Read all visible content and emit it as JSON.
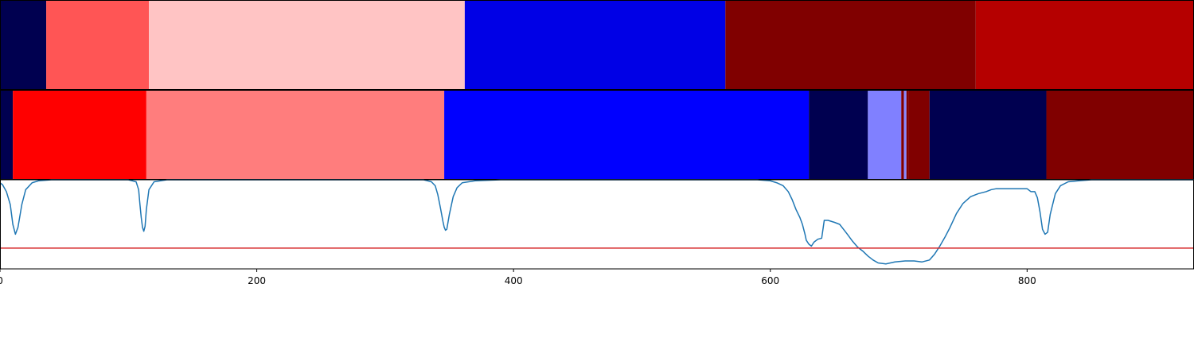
{
  "chart_data": [
    {
      "type": "heatmap",
      "x": [
        0,
        36,
        116,
        362,
        565,
        760,
        930
      ],
      "colors": [
        "#000050",
        "#ff5555",
        "#ffc4c4",
        "#0000e6",
        "#800000",
        "#b50000"
      ],
      "xlim": [
        0,
        930
      ]
    },
    {
      "type": "heatmap",
      "x": [
        0,
        10,
        114,
        346,
        630,
        676,
        702,
        704,
        706,
        708,
        724,
        815,
        930
      ],
      "colors": [
        "#000050",
        "#ff0000",
        "#ff7d7d",
        "#0000ff",
        "#000050",
        "#8080ff",
        "#800000",
        "#8a8aff",
        "#800000",
        "#800000",
        "#000050",
        "#800000"
      ],
      "xlim": [
        0,
        930
      ]
    },
    {
      "type": "line",
      "series": [
        {
          "color": "#1f77b4",
          "points": [
            [
              0,
              0.97
            ],
            [
              2,
              0.95
            ],
            [
              5,
              0.88
            ],
            [
              8,
              0.75
            ],
            [
              10,
              0.55
            ],
            [
              12,
              0.45
            ],
            [
              14,
              0.52
            ],
            [
              17,
              0.75
            ],
            [
              20,
              0.9
            ],
            [
              25,
              0.97
            ],
            [
              30,
              0.99
            ],
            [
              40,
              1.0
            ],
            [
              100,
              1.0
            ],
            [
              106,
              0.98
            ],
            [
              108,
              0.9
            ],
            [
              109,
              0.75
            ],
            [
              110,
              0.62
            ],
            [
              111,
              0.52
            ],
            [
              112,
              0.48
            ],
            [
              113,
              0.53
            ],
            [
              114,
              0.7
            ],
            [
              116,
              0.9
            ],
            [
              120,
              0.98
            ],
            [
              130,
              1.0
            ],
            [
              330,
              1.0
            ],
            [
              336,
              0.98
            ],
            [
              339,
              0.94
            ],
            [
              341,
              0.85
            ],
            [
              343,
              0.72
            ],
            [
              345,
              0.58
            ],
            [
              346,
              0.52
            ],
            [
              347,
              0.49
            ],
            [
              348,
              0.5
            ],
            [
              350,
              0.65
            ],
            [
              353,
              0.83
            ],
            [
              356,
              0.92
            ],
            [
              360,
              0.97
            ],
            [
              370,
              0.99
            ],
            [
              390,
              1.0
            ],
            [
              590,
              1.0
            ],
            [
              600,
              0.99
            ],
            [
              605,
              0.97
            ],
            [
              610,
              0.94
            ],
            [
              614,
              0.88
            ],
            [
              617,
              0.8
            ],
            [
              620,
              0.7
            ],
            [
              623,
              0.62
            ],
            [
              625,
              0.55
            ],
            [
              627,
              0.45
            ],
            [
              628,
              0.39
            ],
            [
              630,
              0.35
            ],
            [
              632,
              0.33
            ],
            [
              634,
              0.37
            ],
            [
              637,
              0.4
            ],
            [
              640,
              0.41
            ],
            [
              641,
              0.5
            ],
            [
              642,
              0.59
            ],
            [
              645,
              0.59
            ],
            [
              650,
              0.57
            ],
            [
              654,
              0.55
            ],
            [
              657,
              0.5
            ],
            [
              660,
              0.45
            ],
            [
              664,
              0.38
            ],
            [
              668,
              0.32
            ],
            [
              672,
              0.28
            ],
            [
              676,
              0.23
            ],
            [
              680,
              0.19
            ],
            [
              684,
              0.16
            ],
            [
              690,
              0.15
            ],
            [
              697,
              0.17
            ],
            [
              705,
              0.18
            ],
            [
              712,
              0.18
            ],
            [
              718,
              0.17
            ],
            [
              724,
              0.19
            ],
            [
              728,
              0.25
            ],
            [
              732,
              0.33
            ],
            [
              736,
              0.42
            ],
            [
              740,
              0.52
            ],
            [
              745,
              0.66
            ],
            [
              750,
              0.76
            ],
            [
              756,
              0.83
            ],
            [
              762,
              0.86
            ],
            [
              768,
              0.88
            ],
            [
              772,
              0.9
            ],
            [
              776,
              0.91
            ],
            [
              780,
              0.91
            ],
            [
              800,
              0.91
            ],
            [
              803,
              0.88
            ],
            [
              806,
              0.88
            ],
            [
              808,
              0.82
            ],
            [
              810,
              0.68
            ],
            [
              812,
              0.5
            ],
            [
              814,
              0.45
            ],
            [
              816,
              0.47
            ],
            [
              818,
              0.65
            ],
            [
              822,
              0.86
            ],
            [
              826,
              0.94
            ],
            [
              832,
              0.98
            ],
            [
              840,
              0.99
            ],
            [
              850,
              1.0
            ],
            [
              930,
              1.0
            ]
          ]
        },
        {
          "color": "#d62728",
          "points": [
            [
              0,
              0.31
            ],
            [
              930,
              0.31
            ]
          ]
        }
      ],
      "xlim": [
        0,
        930
      ],
      "ylim": [
        0.1,
        1.0
      ],
      "xticks": [
        0,
        200,
        400,
        600,
        800
      ]
    }
  ]
}
